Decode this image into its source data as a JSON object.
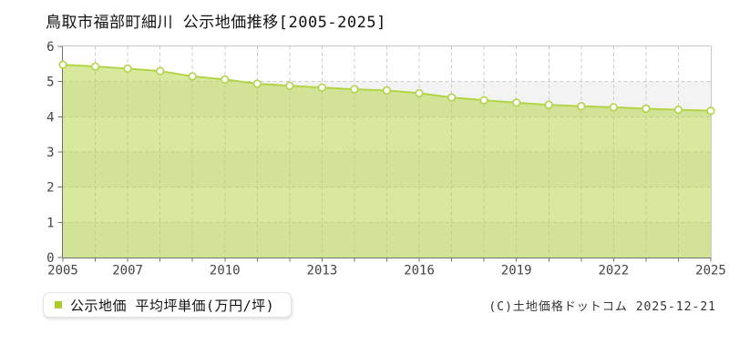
{
  "page": {
    "title": "鳥取市福部町細川 公示地価推移[2005-2025]",
    "copyright": "(C)土地価格ドットコム 2025-12-21"
  },
  "legend": {
    "label": "公示地価 平均坪単価(万円/坪)",
    "marker_color": "#a9cd2c"
  },
  "chart_data": {
    "type": "area",
    "title": "鳥取市福部町細川 公示地価推移[2005-2025]",
    "series_name": "公示地価 平均坪単価",
    "unit": "万円/坪",
    "x": [
      2005,
      2006,
      2007,
      2008,
      2009,
      2010,
      2011,
      2012,
      2013,
      2014,
      2015,
      2016,
      2017,
      2018,
      2019,
      2020,
      2021,
      2022,
      2023,
      2024,
      2025
    ],
    "values": [
      5.48,
      5.43,
      5.37,
      5.3,
      5.15,
      5.06,
      4.94,
      4.88,
      4.83,
      4.78,
      4.75,
      4.67,
      4.55,
      4.47,
      4.4,
      4.34,
      4.3,
      4.27,
      4.23,
      4.2,
      4.17
    ],
    "ylim": [
      0,
      6
    ],
    "y_ticks": [
      0,
      1,
      2,
      3,
      4,
      5,
      6
    ],
    "x_tick_labels": [
      "2005",
      "2007",
      "2010",
      "2013",
      "2016",
      "2019",
      "2022",
      "2025"
    ],
    "grid": true,
    "legend_position": "bottom-left",
    "colors": {
      "line": "#b2d447",
      "fill": "rgba(177,211,62,0.5)",
      "marker": "#ffffff",
      "grid": "#cccccc",
      "axis": "#707070",
      "border": "#c8c8c8",
      "band": "#f3f3f3",
      "text": "#444444"
    }
  }
}
